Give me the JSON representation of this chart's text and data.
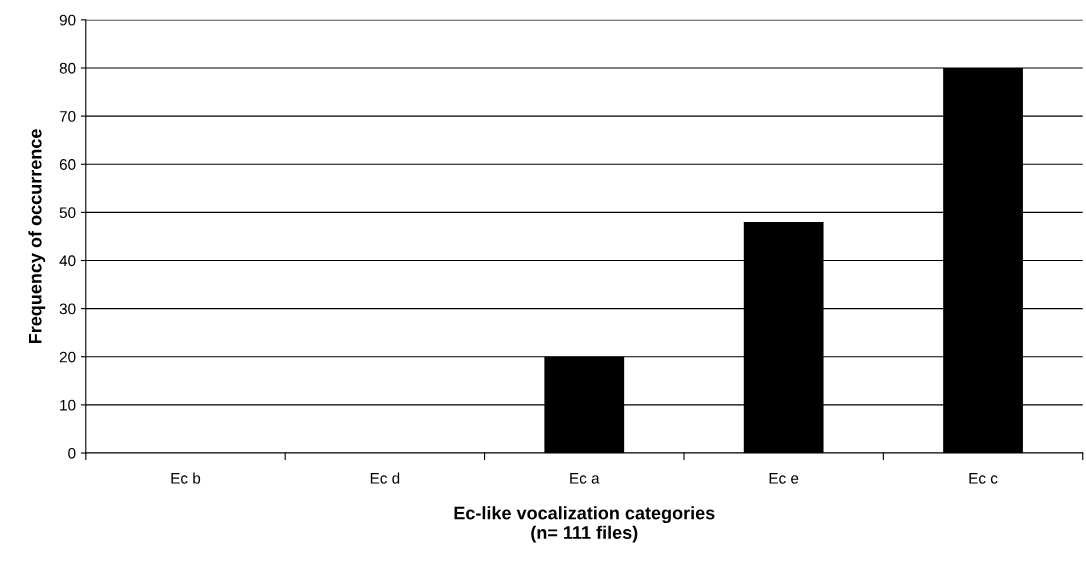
{
  "chart_data": {
    "type": "bar",
    "xlabel": "Ec-like vocalization categories\n(n= 111 files)",
    "ylabel": "Frequency of occurrence",
    "categories": [
      "Ec b",
      "Ec d",
      "Ec a",
      "Ec e",
      "Ec c"
    ],
    "values": [
      0,
      0,
      20,
      48,
      80
    ],
    "color": "#000000",
    "ylim": [
      0,
      90
    ],
    "yticks": [
      0,
      10,
      20,
      30,
      40,
      50,
      60,
      70,
      80,
      90
    ],
    "grid": "y"
  }
}
